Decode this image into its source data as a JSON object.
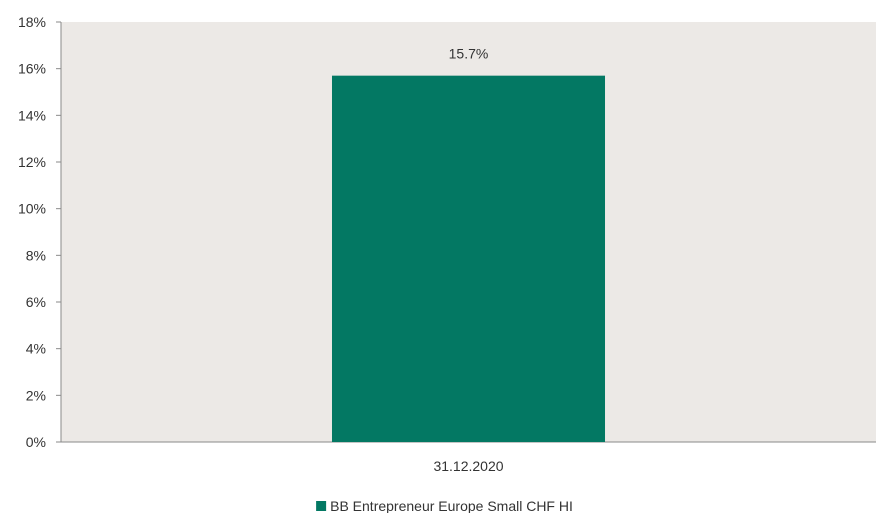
{
  "chart_data": {
    "type": "bar",
    "categories": [
      "31.12.2020"
    ],
    "series": [
      {
        "name": "BB Entrepreneur Europe Small CHF HI",
        "values": [
          15.7
        ],
        "data_labels": [
          "15.7%"
        ],
        "color": "#037863"
      }
    ],
    "ylim": [
      0,
      18
    ],
    "yticks": [
      0,
      2,
      4,
      6,
      8,
      10,
      12,
      14,
      16,
      18
    ],
    "ytick_labels": [
      "0%",
      "2%",
      "4%",
      "6%",
      "8%",
      "10%",
      "12%",
      "14%",
      "16%",
      "18%"
    ],
    "plot_background": "#ece9e6",
    "grid": false,
    "legend_position": "bottom-center"
  }
}
